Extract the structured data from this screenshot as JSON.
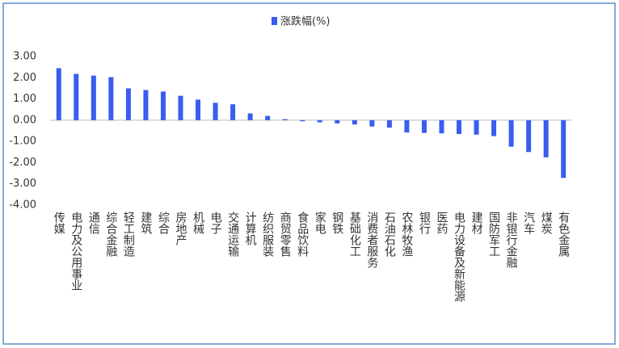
{
  "chart_data": {
    "type": "bar",
    "legend": "涨跌幅(%)",
    "color": "#3a5cf0",
    "categories": [
      "传媒",
      "电力及公用事业",
      "通信",
      "综合金融",
      "轻工制造",
      "建筑",
      "综合",
      "房地产",
      "机械",
      "电子",
      "交通运输",
      "计算机",
      "纺织服装",
      "商贸零售",
      "食品饮料",
      "家电",
      "钢铁",
      "基础化工",
      "消费者服务",
      "石油石化",
      "农林牧渔",
      "银行",
      "医药",
      "电力设备及新能源",
      "建材",
      "国防军工",
      "非银行金融",
      "汽车",
      "煤炭",
      "有色金属"
    ],
    "values": [
      2.45,
      2.18,
      2.1,
      2.03,
      1.5,
      1.42,
      1.35,
      1.15,
      0.97,
      0.82,
      0.75,
      0.32,
      0.2,
      0.05,
      -0.05,
      -0.1,
      -0.15,
      -0.2,
      -0.3,
      -0.35,
      -0.58,
      -0.6,
      -0.62,
      -0.65,
      -0.68,
      -0.75,
      -1.25,
      -1.5,
      -1.75,
      -2.72
    ],
    "ylim": [
      -4,
      3
    ],
    "yticks": [
      {
        "value": 3,
        "label": "3.00"
      },
      {
        "value": 2,
        "label": "2.00"
      },
      {
        "value": 1,
        "label": "1.00"
      },
      {
        "value": 0,
        "label": "0.00"
      },
      {
        "value": -1,
        "label": "-1.00"
      },
      {
        "value": -2,
        "label": "-2.00"
      },
      {
        "value": -3,
        "label": "-3.00"
      },
      {
        "value": -4,
        "label": "-4.00"
      }
    ]
  }
}
